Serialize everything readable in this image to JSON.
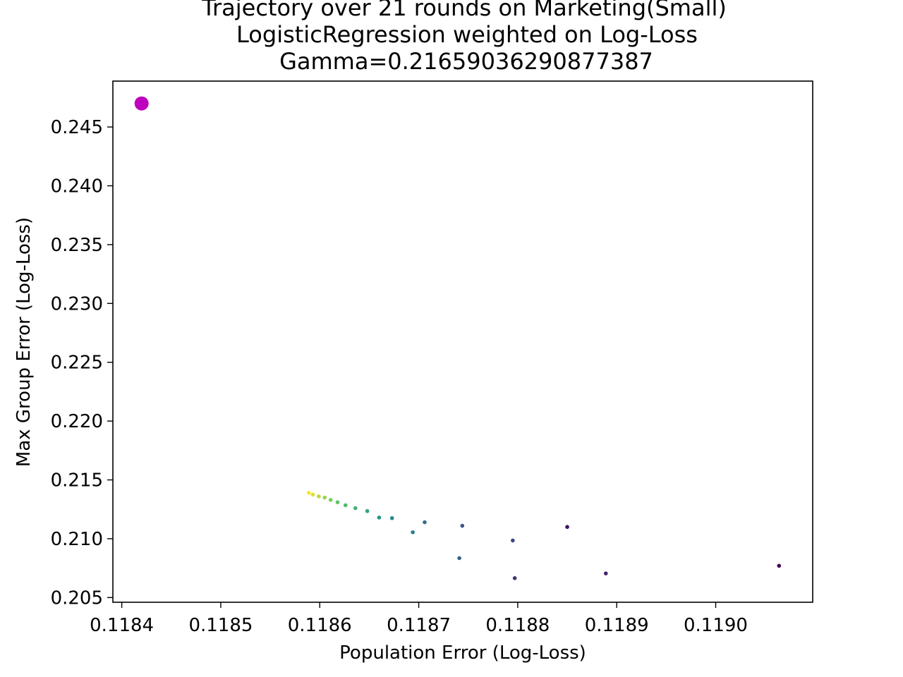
{
  "chart_data": {
    "type": "scatter",
    "title_lines": [
      "Trajectory over 21 rounds on Marketing(Small)",
      "LogisticRegression weighted on Log-Loss",
      "Gamma=0.21659036290877387"
    ],
    "xlabel": "Population Error (Log-Loss)",
    "ylabel": "Max Group Error (Log-Loss)",
    "xlim": [
      0.118391,
      0.119098
    ],
    "ylim": [
      0.2046,
      0.2489
    ],
    "xticks": [
      "0.1184",
      "0.1185",
      "0.1186",
      "0.1187",
      "0.1188",
      "0.1189",
      "0.1190"
    ],
    "xtick_values": [
      0.1184,
      0.1185,
      0.1186,
      0.1187,
      0.1188,
      0.1189,
      0.119
    ],
    "yticks": [
      "0.205",
      "0.210",
      "0.215",
      "0.220",
      "0.225",
      "0.230",
      "0.235",
      "0.240",
      "0.245"
    ],
    "ytick_values": [
      0.205,
      0.21,
      0.215,
      0.22,
      0.225,
      0.23,
      0.235,
      0.24,
      0.245
    ],
    "grid": false,
    "colormap": "viridis",
    "highlight_color": "#bf00bf",
    "highlight_point": {
      "x": 0.11842,
      "y": 0.247
    },
    "points": [
      {
        "x": 0.119064,
        "y": 0.2077
      },
      {
        "x": 0.11885,
        "y": 0.211
      },
      {
        "x": 0.118889,
        "y": 0.20705
      },
      {
        "x": 0.118797,
        "y": 0.20665
      },
      {
        "x": 0.118795,
        "y": 0.20985
      },
      {
        "x": 0.118744,
        "y": 0.2111
      },
      {
        "x": 0.118741,
        "y": 0.20835
      },
      {
        "x": 0.118706,
        "y": 0.2114
      },
      {
        "x": 0.118694,
        "y": 0.21055
      },
      {
        "x": 0.118673,
        "y": 0.21175
      },
      {
        "x": 0.11866,
        "y": 0.2118
      },
      {
        "x": 0.118648,
        "y": 0.21235
      },
      {
        "x": 0.118636,
        "y": 0.2126
      },
      {
        "x": 0.118626,
        "y": 0.21285
      },
      {
        "x": 0.118618,
        "y": 0.2131
      },
      {
        "x": 0.118611,
        "y": 0.2133
      },
      {
        "x": 0.118605,
        "y": 0.2135
      },
      {
        "x": 0.118599,
        "y": 0.2136
      },
      {
        "x": 0.118593,
        "y": 0.21375
      },
      {
        "x": 0.118589,
        "y": 0.2139
      }
    ]
  }
}
